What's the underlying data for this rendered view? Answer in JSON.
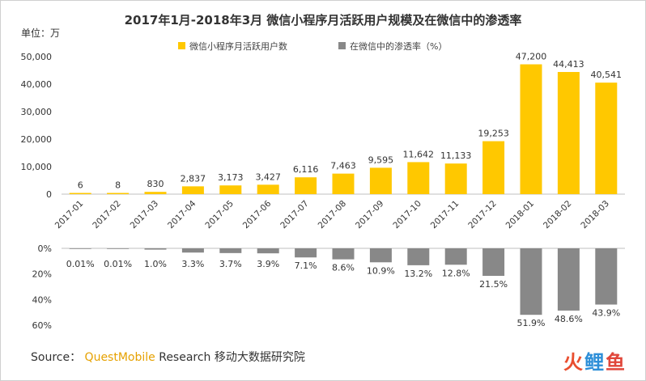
{
  "chart_data": {
    "type": "bar",
    "title": "2017年1月-2018年3月 微信小程序月活跃用户规模及在微信中的渗透率",
    "unit_label": "单位：万",
    "categories": [
      "2017-01",
      "2017-02",
      "2017-03",
      "2017-04",
      "2017-05",
      "2017-06",
      "2017-07",
      "2017-08",
      "2017-09",
      "2017-10",
      "2017-11",
      "2017-12",
      "2018-01",
      "2018-02",
      "2018-03"
    ],
    "series": [
      {
        "name": "微信小程序月活跃用户数",
        "color": "#ffc800",
        "values": [
          6,
          8,
          830,
          2837,
          3173,
          3427,
          6116,
          7463,
          9595,
          11642,
          11133,
          19253,
          47200,
          44413,
          40541
        ],
        "labels": [
          "6",
          "8",
          "830",
          "2,837",
          "3,173",
          "3,427",
          "6,116",
          "7,463",
          "9,595",
          "11,642",
          "11,133",
          "19,253",
          "47,200",
          "44,413",
          "40,541"
        ]
      },
      {
        "name": "在微信中的渗透率（%）",
        "color": "#888888",
        "values": [
          0.01,
          0.01,
          1.0,
          3.3,
          3.7,
          3.9,
          7.1,
          8.6,
          10.9,
          13.2,
          12.8,
          21.5,
          51.9,
          48.6,
          43.9
        ],
        "labels": [
          "0.01%",
          "0.01%",
          "1.0%",
          "3.3%",
          "3.7%",
          "3.9%",
          "7.1%",
          "8.6%",
          "10.9%",
          "13.2%",
          "12.8%",
          "21.5%",
          "51.9%",
          "48.6%",
          "43.9%"
        ]
      }
    ],
    "yaxis_top": {
      "ylim": [
        0,
        50000
      ],
      "ticks": [
        "0",
        "10,000",
        "20,000",
        "30,000",
        "40,000",
        "50,000"
      ]
    },
    "yaxis_bottom": {
      "ylim": [
        0,
        60
      ],
      "ticks": [
        "0%",
        "20%",
        "40%",
        "60%"
      ],
      "inverted": true
    },
    "legend_position": "top-center",
    "grid": false
  },
  "source": {
    "prefix": "Source：",
    "brand": "QuestMobile",
    "suffix": " Research 移动大数据研究院"
  },
  "watermark": {
    "c1": "火",
    "c2": "鲤",
    "c3": "鱼"
  }
}
